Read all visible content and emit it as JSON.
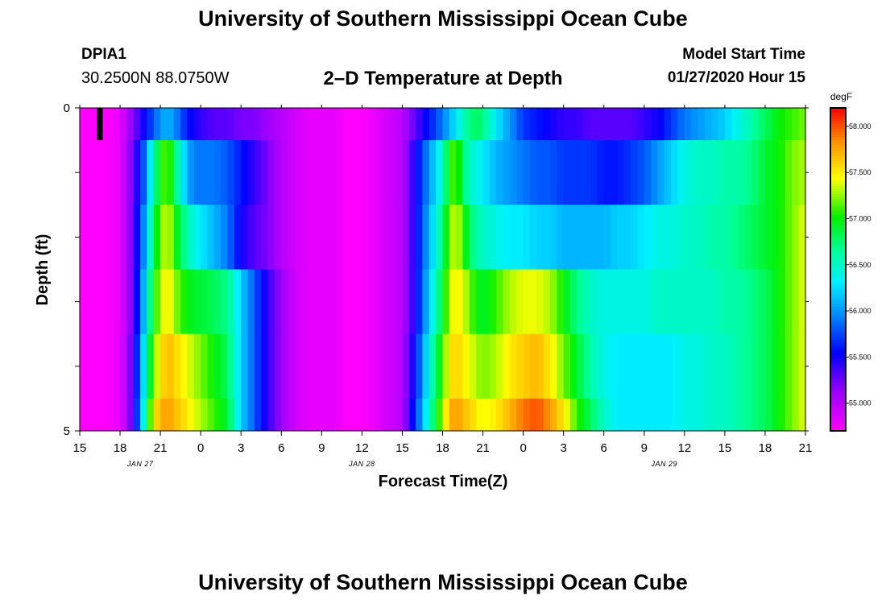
{
  "chart_data": {
    "type": "heatmap",
    "title": "University of Southern Mississippi Ocean Cube",
    "footer_title": "University of Southern Mississippi Ocean Cube",
    "station": "DPIA1",
    "coordinates": "30.2500N 88.0750W",
    "subtitle": "2–D Temperature at Depth",
    "model_start_label": "Model Start Time",
    "model_start_value": "01/27/2020 Hour 15",
    "xlabel": "Forecast Time(Z)",
    "ylabel": "Depth (ft)",
    "x_range_hours": [
      0,
      54
    ],
    "y_range": [
      0,
      5
    ],
    "y_ticks": [
      0,
      1,
      2,
      3,
      4,
      5
    ],
    "y_tick_labels": [
      "0",
      "5"
    ],
    "x_tick_labels": [
      "15",
      "18",
      "21",
      "0",
      "3",
      "6",
      "9",
      "12",
      "15",
      "18",
      "21",
      "0",
      "3",
      "6",
      "9",
      "12",
      "15",
      "18",
      "21"
    ],
    "date_labels": [
      {
        "text": "JAN 27",
        "hour": 4.5
      },
      {
        "text": "JAN 28",
        "hour": 21
      },
      {
        "text": "JAN 29",
        "hour": 43.5
      }
    ],
    "colorbar": {
      "label": "degF",
      "min": 54.7,
      "max": 58.2,
      "tick_values": [
        55.0,
        55.5,
        56.0,
        56.5,
        57.0,
        57.5,
        58.0
      ],
      "tick_labels": [
        "55.000",
        "55.500",
        "56.000",
        "56.500",
        "57.000",
        "57.500",
        "58.000"
      ]
    },
    "marker": {
      "hour": 1.5,
      "depth_from": 0,
      "depth_to": 0.5
    },
    "depth_layers": [
      0,
      1,
      2,
      3,
      4,
      4.75
    ],
    "profile_hours": [
      0,
      1,
      2,
      3,
      3.5,
      4,
      4.5,
      5,
      5.5,
      6,
      6.5,
      7,
      7.5,
      8,
      8.5,
      9,
      10,
      11,
      12,
      13,
      14,
      15,
      16,
      17,
      18,
      19,
      20,
      21,
      22,
      23,
      24,
      25,
      26,
      27,
      27.5,
      28,
      28.5,
      29,
      29.5,
      30,
      31,
      32,
      33,
      34,
      35,
      36,
      37,
      38,
      39,
      40,
      41,
      42,
      43,
      44,
      45,
      46,
      47,
      48,
      49,
      50,
      51,
      52,
      53,
      54
    ],
    "profiles": {
      "0": [
        54.7,
        54.7,
        54.7,
        54.8,
        55.0,
        55.2,
        55.4,
        55.6,
        55.8,
        56.0,
        56.1,
        56.0,
        55.8,
        55.6,
        55.5,
        55.4,
        55.3,
        55.3,
        55.2,
        55.2,
        55.1,
        55.0,
        54.9,
        54.8,
        54.8,
        54.8,
        54.7,
        54.7,
        54.8,
        54.9,
        55.0,
        55.3,
        55.6,
        55.9,
        56.1,
        56.3,
        56.5,
        56.7,
        56.8,
        56.7,
        56.3,
        56.0,
        55.7,
        55.6,
        55.5,
        55.4,
        55.4,
        55.3,
        55.3,
        55.3,
        55.3,
        55.4,
        55.5,
        55.7,
        55.9,
        56.0,
        56.1,
        56.2,
        56.4,
        56.6,
        56.8,
        57.0,
        57.1,
        57.2
      ],
      "1": [
        54.7,
        54.7,
        54.7,
        54.8,
        55.0,
        55.3,
        55.6,
        56.0,
        56.6,
        57.0,
        57.2,
        56.9,
        56.4,
        56.1,
        55.9,
        55.9,
        55.9,
        55.8,
        55.6,
        55.4,
        55.2,
        55.0,
        54.9,
        54.8,
        54.8,
        54.8,
        54.7,
        54.7,
        54.8,
        54.9,
        55.0,
        55.5,
        56.0,
        56.5,
        57.0,
        57.2,
        56.8,
        56.5,
        56.4,
        56.3,
        56.1,
        56.0,
        55.9,
        55.8,
        55.8,
        55.7,
        55.7,
        55.7,
        55.6,
        55.6,
        55.7,
        55.8,
        56.0,
        56.2,
        56.4,
        56.5,
        56.5,
        56.6,
        56.6,
        56.7,
        56.9,
        57.0,
        57.2,
        57.3
      ],
      "2": [
        54.7,
        54.7,
        54.7,
        54.8,
        55.0,
        55.3,
        55.7,
        56.2,
        56.8,
        57.2,
        57.4,
        57.1,
        56.8,
        56.6,
        56.4,
        56.3,
        56.1,
        55.9,
        55.5,
        55.3,
        55.2,
        55.0,
        54.9,
        54.8,
        54.8,
        54.8,
        54.7,
        54.7,
        54.8,
        54.9,
        55.0,
        55.5,
        56.1,
        56.7,
        57.2,
        57.4,
        57.1,
        56.8,
        56.6,
        56.5,
        56.4,
        56.3,
        56.3,
        56.2,
        56.2,
        56.1,
        56.1,
        56.1,
        56.1,
        56.2,
        56.2,
        56.3,
        56.4,
        56.4,
        56.5,
        56.5,
        56.6,
        56.6,
        56.7,
        56.8,
        56.9,
        57.0,
        57.2,
        57.4
      ],
      "3": [
        54.7,
        54.7,
        54.7,
        54.8,
        55.0,
        55.3,
        55.8,
        56.4,
        57.0,
        57.3,
        57.5,
        57.3,
        57.1,
        57.0,
        56.9,
        56.9,
        56.8,
        56.7,
        56.2,
        55.8,
        55.4,
        55.1,
        54.9,
        54.8,
        54.8,
        54.8,
        54.7,
        54.7,
        54.8,
        54.9,
        55.0,
        55.5,
        56.2,
        56.9,
        57.3,
        57.5,
        57.4,
        57.2,
        57.0,
        56.9,
        57.1,
        57.3,
        57.4,
        57.4,
        57.3,
        57.0,
        56.7,
        56.5,
        56.4,
        56.4,
        56.4,
        56.4,
        56.5,
        56.5,
        56.5,
        56.5,
        56.5,
        56.6,
        56.6,
        56.7,
        56.8,
        57.0,
        57.2,
        57.4
      ],
      "4": [
        54.7,
        54.7,
        54.7,
        54.8,
        55.0,
        55.4,
        55.9,
        56.6,
        57.2,
        57.5,
        57.7,
        57.6,
        57.5,
        57.4,
        57.3,
        57.2,
        57.0,
        56.8,
        56.2,
        55.8,
        55.4,
        55.1,
        54.9,
        54.8,
        54.8,
        54.8,
        54.7,
        54.7,
        54.8,
        54.9,
        55.0,
        55.6,
        56.4,
        57.1,
        57.5,
        57.6,
        57.5,
        57.4,
        57.3,
        57.2,
        57.3,
        57.5,
        57.6,
        57.7,
        57.5,
        57.2,
        56.9,
        56.6,
        56.4,
        56.3,
        56.3,
        56.3,
        56.3,
        56.3,
        56.4,
        56.4,
        56.5,
        56.5,
        56.6,
        56.7,
        56.8,
        57.0,
        57.2,
        57.4
      ],
      "5": [
        54.7,
        54.7,
        54.7,
        54.8,
        55.0,
        55.4,
        56.0,
        56.8,
        57.5,
        57.7,
        57.8,
        57.7,
        57.6,
        57.5,
        57.4,
        57.3,
        57.1,
        56.9,
        56.2,
        55.8,
        55.4,
        55.1,
        54.9,
        54.8,
        54.8,
        54.8,
        54.7,
        54.7,
        54.8,
        54.9,
        55.0,
        55.7,
        56.5,
        57.3,
        57.7,
        57.8,
        57.7,
        57.6,
        57.5,
        57.4,
        57.5,
        57.7,
        57.9,
        58.0,
        57.8,
        57.5,
        57.1,
        56.8,
        56.5,
        56.3,
        56.3,
        56.3,
        56.3,
        56.3,
        56.4,
        56.4,
        56.5,
        56.5,
        56.6,
        56.7,
        56.8,
        57.0,
        57.2,
        57.4
      ]
    }
  }
}
